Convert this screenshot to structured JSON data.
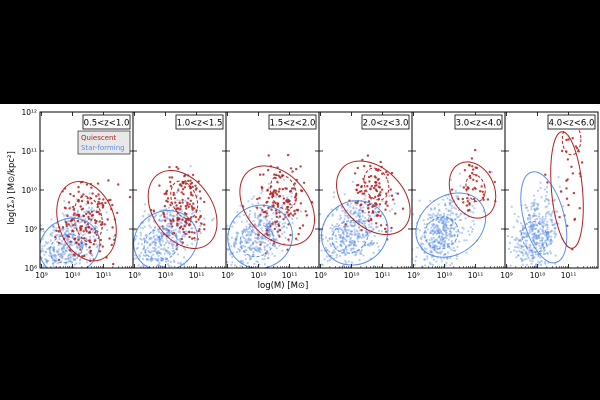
{
  "figure": {
    "ylabel": "log(Σₑ) [M⊙/kpc²]",
    "xlabel": "log(M) [M⊙]",
    "legend": {
      "quiescent": "Quiescent",
      "star_forming": "Star-forming"
    }
  },
  "colors": {
    "quiescent": "#b22222",
    "star_forming": "#5b8ee6",
    "background": "#000000",
    "panel": "#ffffff"
  },
  "chart_data": {
    "type": "scatter",
    "title": "",
    "xlabel": "log(M) [M⊙]",
    "ylabel": "log(Σₑ) [M⊙/kpc²]",
    "xlim": [
      8.95,
      11.95
    ],
    "ylim": [
      8.0,
      12.0
    ],
    "xscale": "log",
    "yscale": "log",
    "x_ticks": [
      9,
      10,
      11
    ],
    "x_tick_labels": [
      "10⁹",
      "10¹⁰",
      "10¹¹"
    ],
    "y_ticks": [
      8,
      9,
      10,
      11,
      12
    ],
    "y_tick_labels": [
      "10⁸",
      "10⁹",
      "10¹⁰",
      "10¹¹",
      "10¹²"
    ],
    "grid": false,
    "legend_position": "top-left (first panel)",
    "series": [
      {
        "name": "Quiescent",
        "color": "#b22222",
        "marker": "dot"
      },
      {
        "name": "Star-forming",
        "color": "#5b8ee6",
        "marker": "dot"
      }
    ],
    "panels": [
      {
        "label": "0.5<z<1.0",
        "quiescent_center": [
          10.5,
          9.15
        ],
        "quiescent_spread": [
          0.45,
          0.5
        ],
        "starforming_center": [
          9.8,
          8.6
        ],
        "starforming_spread": [
          0.55,
          0.45
        ],
        "quiescent_contours": [
          {
            "cx": 10.45,
            "cy": 9.2,
            "rx": 0.9,
            "ry": 1.05,
            "rot": 20
          },
          {
            "cx": 10.5,
            "cy": 9.25,
            "rx": 0.45,
            "ry": 0.6,
            "rot": 10
          }
        ],
        "starforming_contours": [
          {
            "cx": 9.9,
            "cy": 8.55,
            "rx": 1.0,
            "ry": 0.7,
            "rot": 30
          },
          {
            "cx": 9.8,
            "cy": 8.5,
            "rx": 0.55,
            "ry": 0.35,
            "rot": 25
          }
        ]
      },
      {
        "label": "1.0<z<1.5",
        "quiescent_center": [
          10.6,
          9.55
        ],
        "quiescent_spread": [
          0.4,
          0.5
        ],
        "starforming_center": [
          9.9,
          8.75
        ],
        "starforming_spread": [
          0.55,
          0.45
        ],
        "quiescent_contours": [
          {
            "cx": 10.55,
            "cy": 9.5,
            "rx": 0.95,
            "ry": 1.1,
            "rot": 35
          },
          {
            "cx": 10.6,
            "cy": 9.75,
            "rx": 0.4,
            "ry": 0.5,
            "rot": 20
          }
        ],
        "starforming_contours": [
          {
            "cx": 10.0,
            "cy": 8.7,
            "rx": 1.05,
            "ry": 0.75,
            "rot": 30
          },
          {
            "cx": 9.85,
            "cy": 8.6,
            "rx": 0.55,
            "ry": 0.4,
            "rot": 25
          }
        ]
      },
      {
        "label": "1.5<z<2.0",
        "quiescent_center": [
          10.7,
          9.7
        ],
        "quiescent_spread": [
          0.4,
          0.5
        ],
        "starforming_center": [
          10.0,
          8.85
        ],
        "starforming_spread": [
          0.55,
          0.45
        ],
        "quiescent_contours": [
          {
            "cx": 10.6,
            "cy": 9.6,
            "rx": 1.0,
            "ry": 1.15,
            "rot": 40
          },
          {
            "cx": 10.8,
            "cy": 9.95,
            "rx": 0.4,
            "ry": 0.45,
            "rot": 20
          }
        ],
        "starforming_contours": [
          {
            "cx": 10.05,
            "cy": 8.8,
            "rx": 1.05,
            "ry": 0.8,
            "rot": 30
          },
          {
            "cx": 9.95,
            "cy": 8.7,
            "rx": 0.55,
            "ry": 0.4,
            "rot": 25
          }
        ]
      },
      {
        "label": "2.0<z<3.0",
        "quiescent_center": [
          10.75,
          9.9
        ],
        "quiescent_spread": [
          0.35,
          0.45
        ],
        "starforming_center": [
          10.0,
          8.9
        ],
        "starforming_spread": [
          0.5,
          0.45
        ],
        "quiescent_contours": [
          {
            "cx": 10.7,
            "cy": 9.8,
            "rx": 0.95,
            "ry": 1.1,
            "rot": 45
          },
          {
            "cx": 10.8,
            "cy": 10.15,
            "rx": 0.38,
            "ry": 0.42,
            "rot": 20
          }
        ],
        "starforming_contours": [
          {
            "cx": 10.1,
            "cy": 8.9,
            "rx": 1.1,
            "ry": 0.8,
            "rot": 35
          },
          {
            "cx": 9.95,
            "cy": 8.8,
            "rx": 0.6,
            "ry": 0.4,
            "rot": 30
          }
        ]
      },
      {
        "label": "3.0<z<4.0",
        "quiescent_center": [
          10.9,
          10.0
        ],
        "quiescent_spread": [
          0.3,
          0.4
        ],
        "starforming_center": [
          9.9,
          8.9
        ],
        "starforming_spread": [
          0.45,
          0.45
        ],
        "quiescent_contours": [
          {
            "cx": 10.9,
            "cy": 10.0,
            "rx": 0.7,
            "ry": 0.75,
            "rot": 25
          },
          {
            "cx": 11.0,
            "cy": 10.05,
            "rx": 0.3,
            "ry": 0.35,
            "rot": 15
          }
        ],
        "starforming_contours": [
          {
            "cx": 10.2,
            "cy": 9.1,
            "rx": 1.2,
            "ry": 0.75,
            "rot": 35
          },
          {
            "cx": 9.9,
            "cy": 8.9,
            "rx": 0.55,
            "ry": 0.4,
            "rot": 30
          }
        ]
      },
      {
        "label": "4.0<z<6.0",
        "quiescent_center": [
          11.0,
          10.3
        ],
        "quiescent_spread": [
          0.3,
          0.7
        ],
        "starforming_center": [
          9.95,
          8.8
        ],
        "starforming_spread": [
          0.4,
          0.45
        ],
        "quiescent_contours": [
          {
            "cx": 10.95,
            "cy": 10.0,
            "rx": 0.5,
            "ry": 1.5,
            "rot": 5
          },
          {
            "cx": 11.1,
            "cy": 11.3,
            "rx": 0.3,
            "ry": 0.4,
            "rot": 0
          }
        ],
        "starforming_contours": [
          {
            "cx": 10.2,
            "cy": 9.3,
            "rx": 0.65,
            "ry": 1.2,
            "rot": 15
          },
          {
            "cx": 9.9,
            "cy": 8.8,
            "rx": 0.4,
            "ry": 0.4,
            "rot": 20
          }
        ]
      }
    ]
  }
}
